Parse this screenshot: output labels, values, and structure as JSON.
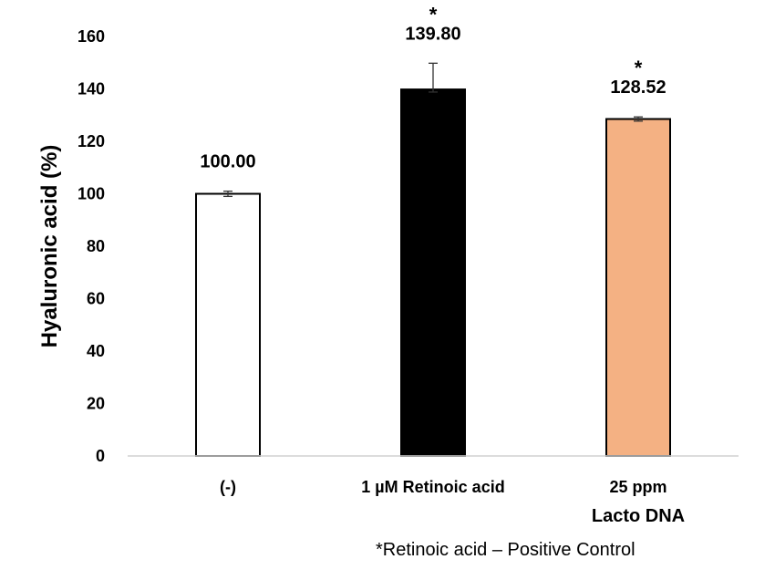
{
  "chart_data": {
    "type": "bar",
    "title": "",
    "xlabel": "",
    "ylabel": "Hyaluronic acid (%)",
    "ylim": [
      0,
      160
    ],
    "yticks": [
      0,
      20,
      40,
      60,
      80,
      100,
      120,
      140,
      160
    ],
    "grid": false,
    "categories": [
      {
        "lines": [
          "(-)"
        ]
      },
      {
        "lines": [
          "1 µM Retinoic acid"
        ]
      },
      {
        "lines": [
          "25 ppm",
          "Lacto DNA"
        ]
      }
    ],
    "values": [
      100.0,
      139.8,
      128.52
    ],
    "data_labels": [
      "100.00",
      "139.80",
      "128.52"
    ],
    "error_lower": [
      1.0,
      1.0,
      0.8
    ],
    "error_upper": [
      1.0,
      10.0,
      0.8
    ],
    "significance": [
      "",
      "*",
      "*"
    ],
    "bar_colors": [
      "#ffffff",
      "#000000",
      "#f4b183"
    ],
    "footnote": "*Retinoic acid – Positive Control"
  }
}
